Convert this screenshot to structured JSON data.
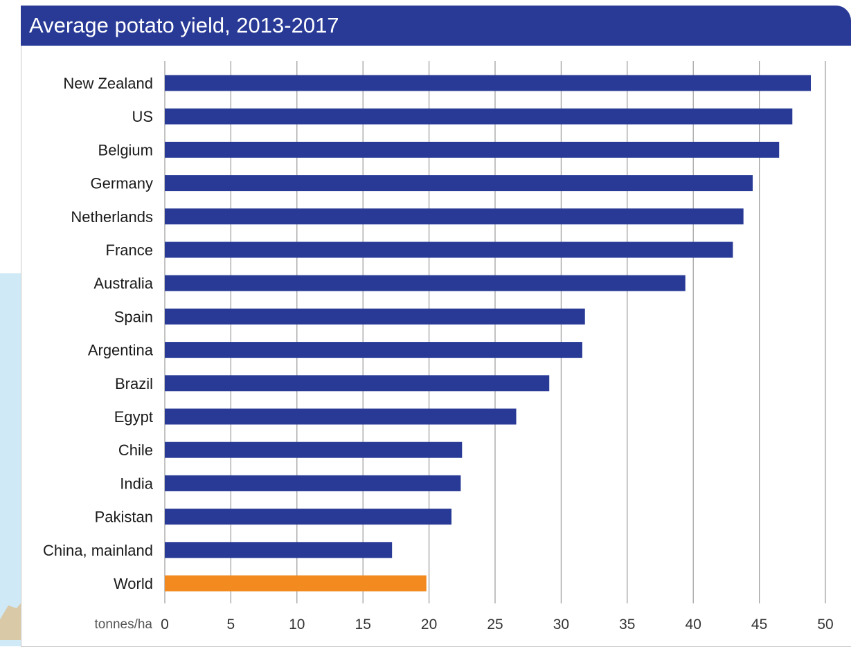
{
  "chart_data": {
    "type": "bar",
    "orientation": "horizontal",
    "title": "Average potato yield, 2013-2017",
    "unit_label": "tonnes/ha",
    "xlim": [
      0,
      50
    ],
    "xticks": [
      0,
      5,
      10,
      15,
      20,
      25,
      30,
      35,
      40,
      45,
      50
    ],
    "grid": true,
    "categories": [
      "New Zealand",
      "US",
      "Belgium",
      "Germany",
      "Netherlands",
      "France",
      "Australia",
      "Spain",
      "Argentina",
      "Brazil",
      "Egypt",
      "Chile",
      "India",
      "Pakistan",
      "China, mainland",
      "World"
    ],
    "values": [
      48.9,
      47.5,
      46.5,
      44.5,
      43.8,
      43.0,
      39.4,
      31.8,
      31.6,
      29.1,
      26.6,
      22.5,
      22.4,
      21.7,
      17.2,
      19.8
    ],
    "colors": {
      "bar": "#283a96",
      "highlight": "#f28a20",
      "header": "#283a96",
      "grid": "#9a9a9a"
    },
    "highlight_category": "World"
  }
}
